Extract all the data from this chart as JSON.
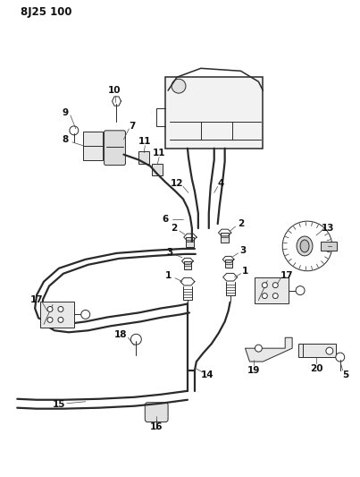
{
  "title_label": "8 J25 100",
  "background_color": "#ffffff",
  "line_color": "#2a2a2a",
  "label_color": "#111111",
  "figsize": [
    4.03,
    5.33
  ],
  "dpi": 100
}
